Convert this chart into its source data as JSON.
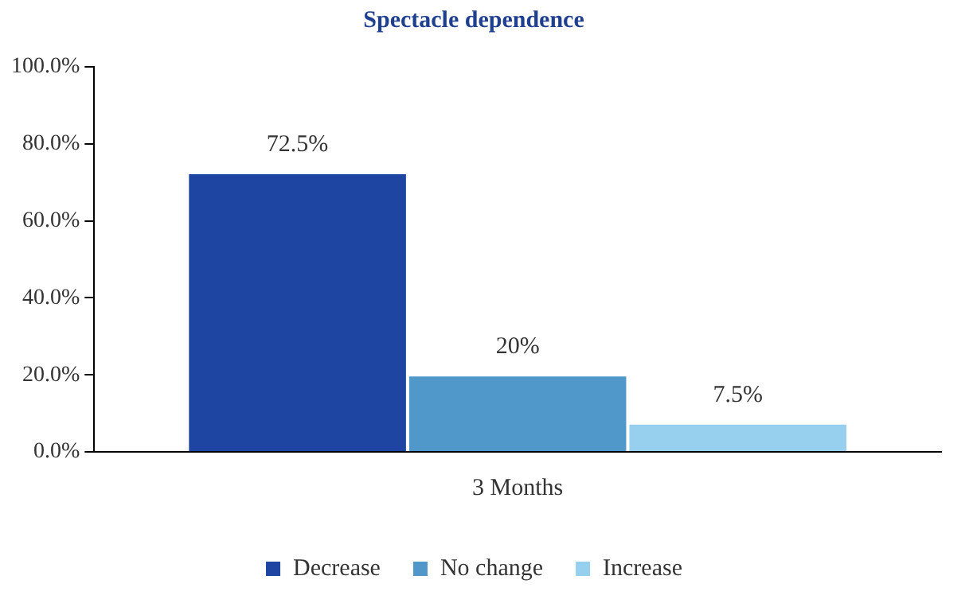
{
  "chart_data": {
    "type": "bar",
    "title": "Spectacle dependence",
    "categories": [
      "3 Months"
    ],
    "series": [
      {
        "name": "Decrease",
        "color": "#1f45a3",
        "values": [
          72.5
        ],
        "value_labels": [
          "72.5%"
        ]
      },
      {
        "name": "No change",
        "color": "#4f98c9",
        "values": [
          20
        ],
        "value_labels": [
          "20%"
        ]
      },
      {
        "name": "Increase",
        "color": "#96d0ee",
        "values": [
          7.5
        ],
        "value_labels": [
          "7.5%"
        ]
      }
    ],
    "ylim": [
      0,
      100
    ],
    "yticks": [
      {
        "value": 0,
        "label": "0.0%"
      },
      {
        "value": 20,
        "label": "20.0%"
      },
      {
        "value": 40,
        "label": "40.0%"
      },
      {
        "value": 60,
        "label": "60.0%"
      },
      {
        "value": 80,
        "label": "80.0%"
      },
      {
        "value": 100,
        "label": "100.0%"
      }
    ],
    "grid": false,
    "legend": "bottom"
  }
}
